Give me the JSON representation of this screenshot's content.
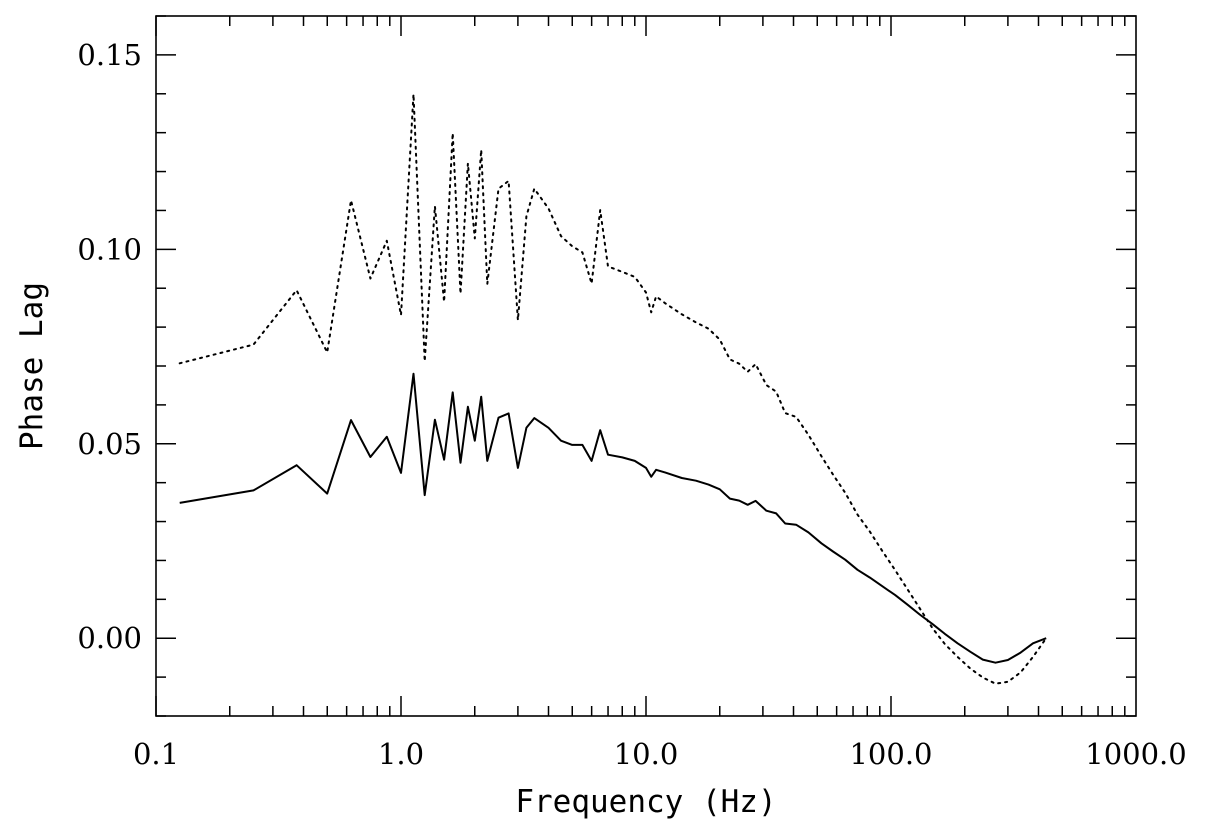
{
  "chart_data": {
    "type": "line",
    "title": "",
    "xlabel": "Frequency (Hz)",
    "ylabel": "Phase Lag",
    "x_scale": "log",
    "xlim": [
      0.1,
      1000.0
    ],
    "ylim": [
      -0.02,
      0.16
    ],
    "x_ticks": [
      0.1,
      1.0,
      10.0,
      100.0,
      1000.0
    ],
    "x_tick_labels": [
      "0.1",
      "1.0",
      "10.0",
      "100.0",
      "1000.0"
    ],
    "y_ticks": [
      0.0,
      0.05,
      0.1,
      0.15
    ],
    "y_tick_labels": [
      "0.00",
      "0.05",
      "0.10",
      "0.15"
    ],
    "grid": false,
    "series": [
      {
        "style": "solid",
        "color": "#000000",
        "points": [
          [
            0.125,
            0.0348
          ],
          [
            0.25,
            0.038
          ],
          [
            0.375,
            0.0445
          ],
          [
            0.5,
            0.0372
          ],
          [
            0.625,
            0.0561
          ],
          [
            0.75,
            0.0466
          ],
          [
            0.875,
            0.0518
          ],
          [
            1.0,
            0.0425
          ],
          [
            1.125,
            0.068
          ],
          [
            1.25,
            0.0368
          ],
          [
            1.375,
            0.0562
          ],
          [
            1.5,
            0.0459
          ],
          [
            1.625,
            0.0632
          ],
          [
            1.75,
            0.0451
          ],
          [
            1.875,
            0.0595
          ],
          [
            2.0,
            0.0508
          ],
          [
            2.125,
            0.0621
          ],
          [
            2.25,
            0.0456
          ],
          [
            2.5,
            0.0567
          ],
          [
            2.75,
            0.0578
          ],
          [
            3.0,
            0.0438
          ],
          [
            3.25,
            0.0541
          ],
          [
            3.5,
            0.0566
          ],
          [
            4.0,
            0.0541
          ],
          [
            4.5,
            0.0508
          ],
          [
            5.0,
            0.0497
          ],
          [
            5.5,
            0.0497
          ],
          [
            6.0,
            0.0456
          ],
          [
            6.5,
            0.0535
          ],
          [
            7.0,
            0.0472
          ],
          [
            8.0,
            0.0465
          ],
          [
            9.0,
            0.0456
          ],
          [
            10.0,
            0.0438
          ],
          [
            10.5,
            0.0415
          ],
          [
            11.0,
            0.0433
          ],
          [
            12.0,
            0.0426
          ],
          [
            14.0,
            0.0412
          ],
          [
            16.0,
            0.0405
          ],
          [
            18.0,
            0.0395
          ],
          [
            20.0,
            0.0383
          ],
          [
            22.0,
            0.0359
          ],
          [
            24.0,
            0.0354
          ],
          [
            26.0,
            0.0343
          ],
          [
            28.0,
            0.0353
          ],
          [
            31.0,
            0.0328
          ],
          [
            34.0,
            0.0321
          ],
          [
            37.0,
            0.0295
          ],
          [
            41.0,
            0.0292
          ],
          [
            46.0,
            0.0272
          ],
          [
            52.0,
            0.0244
          ],
          [
            58.0,
            0.0223
          ],
          [
            65.0,
            0.0202
          ],
          [
            73.0,
            0.0176
          ],
          [
            82.0,
            0.0156
          ],
          [
            92.0,
            0.0134
          ],
          [
            104.0,
            0.0111
          ],
          [
            117.0,
            0.0086
          ],
          [
            131.0,
            0.0061
          ],
          [
            148.0,
            0.0036
          ],
          [
            166.0,
            0.0011
          ],
          [
            187.0,
            -0.0013
          ],
          [
            211.0,
            -0.0035
          ],
          [
            237.0,
            -0.0055
          ],
          [
            267.0,
            -0.0063
          ],
          [
            300.0,
            -0.0056
          ],
          [
            338.0,
            -0.0037
          ],
          [
            380.0,
            -0.0013
          ],
          [
            430.0,
            0.0
          ]
        ]
      },
      {
        "style": "dotted",
        "color": "#000000",
        "points": [
          [
            0.125,
            0.0707
          ],
          [
            0.25,
            0.0755
          ],
          [
            0.375,
            0.0895
          ],
          [
            0.5,
            0.0735
          ],
          [
            0.625,
            0.1126
          ],
          [
            0.75,
            0.0925
          ],
          [
            0.875,
            0.1022
          ],
          [
            1.0,
            0.0831
          ],
          [
            1.125,
            0.1399
          ],
          [
            1.25,
            0.0712
          ],
          [
            1.375,
            0.1111
          ],
          [
            1.5,
            0.0865
          ],
          [
            1.625,
            0.1299
          ],
          [
            1.75,
            0.0886
          ],
          [
            1.875,
            0.1221
          ],
          [
            2.0,
            0.1028
          ],
          [
            2.125,
            0.1256
          ],
          [
            2.25,
            0.0911
          ],
          [
            2.5,
            0.1156
          ],
          [
            2.75,
            0.1176
          ],
          [
            3.0,
            0.0818
          ],
          [
            3.25,
            0.1085
          ],
          [
            3.5,
            0.1156
          ],
          [
            4.0,
            0.1105
          ],
          [
            4.5,
            0.1034
          ],
          [
            5.0,
            0.1008
          ],
          [
            5.5,
            0.0992
          ],
          [
            6.0,
            0.0912
          ],
          [
            6.5,
            0.1101
          ],
          [
            7.0,
            0.0956
          ],
          [
            8.0,
            0.0942
          ],
          [
            9.0,
            0.0929
          ],
          [
            10.0,
            0.0889
          ],
          [
            10.5,
            0.0838
          ],
          [
            11.0,
            0.0879
          ],
          [
            12.0,
            0.0861
          ],
          [
            14.0,
            0.0833
          ],
          [
            16.0,
            0.0812
          ],
          [
            18.0,
            0.0796
          ],
          [
            20.0,
            0.0768
          ],
          [
            22.0,
            0.0717
          ],
          [
            24.0,
            0.0706
          ],
          [
            26.0,
            0.0685
          ],
          [
            28.0,
            0.0705
          ],
          [
            31.0,
            0.0651
          ],
          [
            34.0,
            0.0634
          ],
          [
            37.0,
            0.0579
          ],
          [
            41.0,
            0.0569
          ],
          [
            46.0,
            0.0523
          ],
          [
            52.0,
            0.0468
          ],
          [
            58.0,
            0.0421
          ],
          [
            65.0,
            0.0374
          ],
          [
            73.0,
            0.0318
          ],
          [
            82.0,
            0.0274
          ],
          [
            92.0,
            0.0225
          ],
          [
            104.0,
            0.0175
          ],
          [
            117.0,
            0.0125
          ],
          [
            131.0,
            0.0077
          ],
          [
            148.0,
            0.0025
          ],
          [
            166.0,
            -0.0015
          ],
          [
            187.0,
            -0.0048
          ],
          [
            211.0,
            -0.0078
          ],
          [
            237.0,
            -0.0101
          ],
          [
            267.0,
            -0.0117
          ],
          [
            300.0,
            -0.0112
          ],
          [
            338.0,
            -0.0088
          ],
          [
            380.0,
            -0.0048
          ],
          [
            430.0,
            0.0
          ]
        ]
      }
    ]
  }
}
